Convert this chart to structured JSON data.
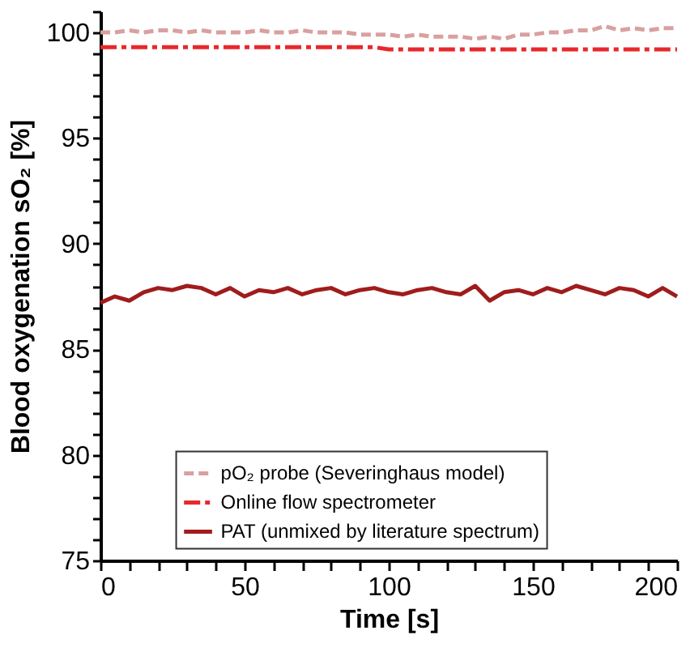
{
  "chart_data": {
    "type": "line",
    "xlabel": "Time [s]",
    "ylabel": "Blood oxygenation sO₂ [%]",
    "x": [
      0,
      5,
      10,
      15,
      20,
      25,
      30,
      35,
      40,
      45,
      50,
      55,
      60,
      65,
      70,
      75,
      80,
      85,
      90,
      95,
      100,
      105,
      110,
      115,
      120,
      125,
      130,
      135,
      140,
      145,
      150,
      155,
      160,
      165,
      170,
      175,
      180,
      185,
      190,
      195,
      200
    ],
    "series": [
      {
        "name": "pO₂ probe (Severinghaus model)",
        "color": "#d9a0a0",
        "line_style": "dashed",
        "values": [
          100.0,
          100.0,
          100.1,
          100.0,
          100.1,
          100.1,
          100.0,
          100.1,
          100.0,
          100.0,
          100.0,
          100.1,
          100.0,
          100.0,
          100.1,
          100.0,
          100.0,
          100.0,
          99.9,
          99.9,
          99.9,
          99.8,
          99.9,
          99.8,
          99.8,
          99.8,
          99.7,
          99.8,
          99.7,
          99.9,
          99.9,
          100.0,
          100.0,
          100.1,
          100.1,
          100.3,
          100.1,
          100.2,
          100.1,
          100.2,
          100.2
        ]
      },
      {
        "name": "Online flow spectrometer",
        "color": "#e8282b",
        "line_style": "dashed",
        "values": [
          99.3,
          99.3,
          99.3,
          99.3,
          99.3,
          99.3,
          99.3,
          99.3,
          99.3,
          99.3,
          99.3,
          99.3,
          99.3,
          99.3,
          99.3,
          99.3,
          99.3,
          99.3,
          99.3,
          99.3,
          99.2,
          99.2,
          99.2,
          99.2,
          99.2,
          99.2,
          99.2,
          99.2,
          99.2,
          99.2,
          99.2,
          99.2,
          99.2,
          99.2,
          99.2,
          99.2,
          99.2,
          99.2,
          99.2,
          99.2,
          99.2
        ]
      },
      {
        "name": "PAT (unmixed by literature spectrum)",
        "color": "#a01c1c",
        "line_style": "solid",
        "values": [
          87.2,
          87.5,
          87.3,
          87.7,
          87.9,
          87.8,
          88.0,
          87.9,
          87.6,
          87.9,
          87.5,
          87.8,
          87.7,
          87.9,
          87.6,
          87.8,
          87.9,
          87.6,
          87.8,
          87.9,
          87.7,
          87.6,
          87.8,
          87.9,
          87.7,
          87.6,
          88.0,
          87.3,
          87.7,
          87.8,
          87.6,
          87.9,
          87.7,
          88.0,
          87.8,
          87.6,
          87.9,
          87.8,
          87.5,
          87.9,
          87.5
        ]
      }
    ],
    "xlim": [
      0,
      200
    ],
    "ylim": [
      75,
      101
    ],
    "xticks": [
      0,
      {
        "value": 10,
        "label": null
      },
      {
        "value": 20,
        "label": null
      },
      {
        "value": 30,
        "label": null
      },
      {
        "value": 40,
        "label": null
      },
      50,
      {
        "value": 60,
        "label": null
      },
      {
        "value": 70,
        "label": null
      },
      {
        "value": 80,
        "label": null
      },
      {
        "value": 90,
        "label": null
      },
      100,
      {
        "value": 110,
        "label": null
      },
      {
        "value": 120,
        "label": null
      },
      {
        "value": 130,
        "label": null
      },
      {
        "value": 140,
        "label": null
      },
      150,
      {
        "value": 160,
        "label": null
      },
      {
        "value": 170,
        "label": null
      },
      {
        "value": 180,
        "label": null
      },
      {
        "value": 190,
        "label": null
      },
      200
    ],
    "yticks": [
      75,
      {
        "value": 76,
        "label": null
      },
      {
        "value": 77,
        "label": null
      },
      {
        "value": 78,
        "label": null
      },
      {
        "value": 79,
        "label": null
      },
      80,
      {
        "value": 81,
        "label": null
      },
      {
        "value": 82,
        "label": null
      },
      {
        "value": 83,
        "label": null
      },
      {
        "value": 84,
        "label": null
      },
      85,
      {
        "value": 86,
        "label": null
      },
      {
        "value": 87,
        "label": null
      },
      {
        "value": 88,
        "label": null
      },
      {
        "value": 89,
        "label": null
      },
      90,
      {
        "value": 91,
        "label": null
      },
      {
        "value": 92,
        "label": null
      },
      {
        "value": 93,
        "label": null
      },
      {
        "value": 94,
        "label": null
      },
      95,
      {
        "value": 96,
        "label": null
      },
      {
        "value": 97,
        "label": null
      },
      {
        "value": 98,
        "label": null
      },
      {
        "value": 99,
        "label": null
      },
      100,
      {
        "value": 101,
        "label": null
      }
    ],
    "legend": "bottom",
    "grid": false,
    "marker": "none"
  }
}
